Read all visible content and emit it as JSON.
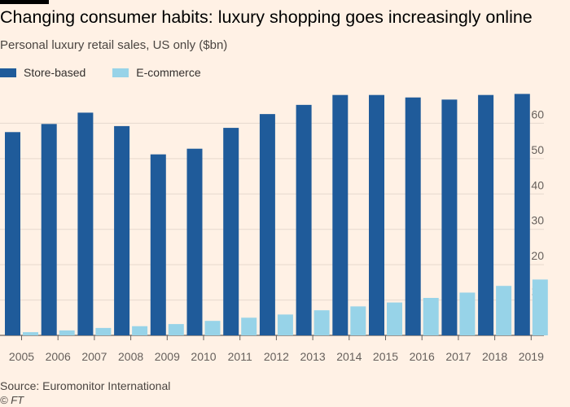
{
  "title": "Changing consumer habits: luxury shopping goes increasingly online",
  "subtitle": "Personal luxury retail sales, US only ($bn)",
  "source": "Source: Euromonitor International",
  "copyright": "© FT",
  "chart_data": {
    "type": "bar",
    "title": "Changing consumer habits: luxury shopping goes increasingly online",
    "subtitle": "Personal luxury retail sales, US only ($bn)",
    "xlabel": "",
    "ylabel": "",
    "categories": [
      "2005",
      "2006",
      "2007",
      "2008",
      "2009",
      "2010",
      "2011",
      "2012",
      "2013",
      "2014",
      "2015",
      "2016",
      "2017",
      "2018",
      "2019"
    ],
    "series": [
      {
        "name": "Store-based",
        "color": "#1f5b9a",
        "values": [
          57.5,
          59.8,
          63.0,
          59.2,
          51.2,
          52.8,
          58.7,
          62.6,
          65.2,
          68.0,
          68.0,
          67.3,
          66.7,
          68.0,
          68.3
        ]
      },
      {
        "name": "E-commerce",
        "color": "#97d3e8",
        "values": [
          0.9,
          1.4,
          2.1,
          2.6,
          3.2,
          4.1,
          5.0,
          5.9,
          7.1,
          8.2,
          9.3,
          10.6,
          12.1,
          14.0,
          15.8
        ]
      }
    ],
    "ylim": [
      0,
      70
    ],
    "yticks": [
      0,
      10,
      20,
      30,
      40,
      50,
      60
    ],
    "grid": true,
    "legend": "top-left",
    "yaxis_position": "right"
  }
}
